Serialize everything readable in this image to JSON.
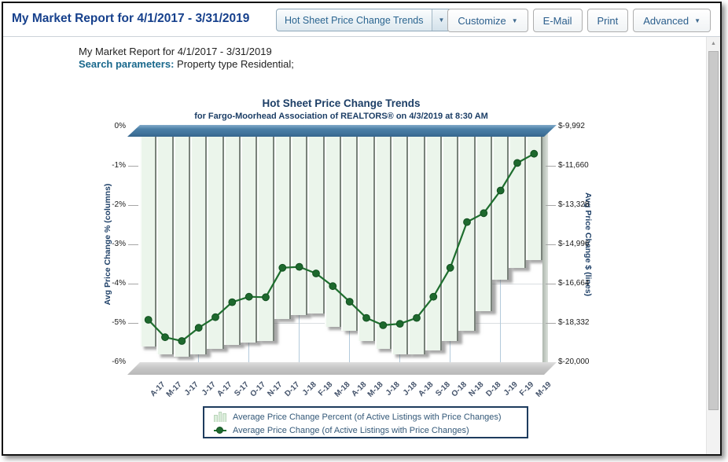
{
  "header": {
    "title": "My Market Report for 4/1/2017 - 3/31/2019",
    "report_dropdown": {
      "value": "Hot Sheet Price Change Trends",
      "arrow": "▼"
    },
    "buttons": [
      {
        "label": "Customize",
        "arrow": "▼"
      },
      {
        "label": "E-Mail",
        "arrow": ""
      },
      {
        "label": "Print",
        "arrow": ""
      },
      {
        "label": "Advanced",
        "arrow": "▼"
      }
    ]
  },
  "report_header": {
    "line1": "My Market Report for 4/1/2017 - 3/31/2019",
    "search_label": "Search parameters:",
    "search_value": "Property type Residential;"
  },
  "chart_data": {
    "type": "combo-3d-column-line",
    "title": "Hot Sheet Price Change Trends",
    "subtitle": "for Fargo-Moorhead Association of REALTORS® on 4/3/2019 at 8:30 AM",
    "categories": [
      "A-17",
      "M-17",
      "J-17",
      "J-17",
      "A-17",
      "S-17",
      "O-17",
      "N-17",
      "D-17",
      "J-18",
      "F-18",
      "M-18",
      "A-18",
      "M-18",
      "J-18",
      "J-18",
      "A-18",
      "S-18",
      "O-18",
      "N-18",
      "D-18",
      "J-19",
      "F-19",
      "M-19"
    ],
    "series": [
      {
        "name": "Average Price Change Percent (of Active Listings with Price Changes)",
        "type": "column",
        "axis": "left",
        "unit": "percent",
        "values": [
          -5.6,
          -5.8,
          -5.85,
          -5.8,
          -5.65,
          -5.55,
          -5.5,
          -5.45,
          -4.9,
          -4.8,
          -4.75,
          -5.1,
          -5.2,
          -5.45,
          -5.65,
          -5.8,
          -5.8,
          -5.7,
          -5.45,
          -5.2,
          -4.7,
          -3.9,
          -3.6,
          -3.4
        ]
      },
      {
        "name": "Average Price Change (of Active Listings with Price Changes)",
        "type": "line",
        "axis": "right",
        "unit": "dollars",
        "values": [
          -18200,
          -18940,
          -19100,
          -18540,
          -18090,
          -17450,
          -17220,
          -17240,
          -15990,
          -15950,
          -16230,
          -16770,
          -17430,
          -18120,
          -18430,
          -18370,
          -18120,
          -17220,
          -15990,
          -14050,
          -13670,
          -12710,
          -11540,
          -11150
        ]
      }
    ],
    "left_axis": {
      "title": "Avg Price Change % (columns)",
      "min": -6,
      "max": 0,
      "tick_labels": [
        "0%",
        "-1%",
        "-2%",
        "-3%",
        "-4%",
        "-5%",
        "-6%"
      ]
    },
    "right_axis": {
      "title": "Avg Price Change $ (lines)",
      "min": -20000,
      "max": -9992,
      "tick_labels": [
        "$-9,992",
        "$-11,660",
        "$-13,328",
        "$-14,996",
        "$-16,664",
        "$-18,332",
        "$-20,000"
      ]
    },
    "legend_position": "bottom",
    "grid": {
      "horizontal": true,
      "vertical_every_3rd": true
    },
    "colors": {
      "column_fill": "#ebf5eb",
      "column_edge": "#79827a",
      "line_green": "#1e6e2e",
      "top_plane_blue": "#4a7fa7",
      "bottom_plane_gray": "#c4c4c4",
      "title_navy": "#1c3e66",
      "page_title_blue": "#16408c",
      "search_label_teal": "#19688c"
    }
  },
  "scrollbar": {
    "up_arrow": "▲"
  }
}
